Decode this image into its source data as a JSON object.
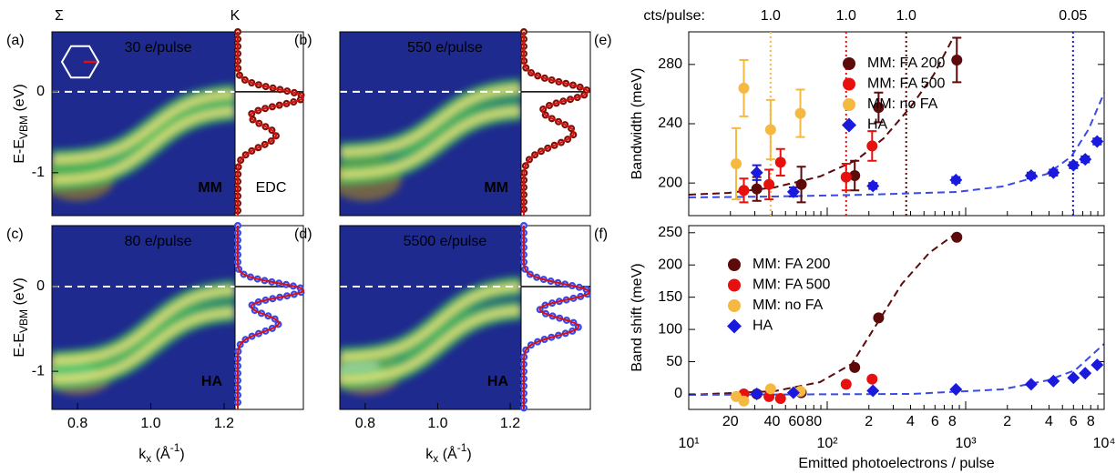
{
  "chart_data": [
    {
      "type": "image",
      "panel_label": "(a)",
      "text": "30 e/pulse",
      "tag": "MM",
      "edc_label": "EDC",
      "top_labels": [
        "Σ",
        "K"
      ],
      "ylabel": [
        "E-E",
        "VBM",
        " (eV)"
      ],
      "ylim": [
        -1.53,
        0.74
      ],
      "yticks": [
        0,
        -1
      ]
    },
    {
      "type": "image",
      "panel_label": "(b)",
      "text": "550 e/pulse",
      "tag": "MM",
      "ylim": [
        -1.53,
        0.74
      ]
    },
    {
      "type": "image",
      "panel_label": "(c)",
      "text": "80 e/pulse",
      "tag": "HA",
      "ylabel": [
        "E-E",
        "VBM",
        " (eV)"
      ],
      "ylim": [
        -1.45,
        0.72
      ],
      "yticks": [
        0,
        -1
      ],
      "xlabel": [
        "k",
        "x",
        " (Å",
        "-1",
        ")"
      ],
      "xlim": [
        0.73,
        1.23
      ],
      "xticks": [
        0.8,
        {
          "value": 1,
          "label": "1.0"
        },
        1.2
      ]
    },
    {
      "type": "image",
      "panel_label": "(d)",
      "text": "5500 e/pulse",
      "tag": "HA",
      "ylim": [
        -1.45,
        0.72
      ],
      "xlabel": [
        "k",
        "x",
        " (Å",
        "-1",
        ")"
      ],
      "xlim": [
        0.73,
        1.23
      ],
      "xticks": [
        0.8,
        {
          "value": 1,
          "label": "1.0"
        },
        1.2
      ]
    },
    {
      "type": "scatter",
      "panel_label": "(e)",
      "ylabel": "Bandwidth (meV)",
      "log_x": true,
      "xlim": [
        10,
        10000
      ],
      "ylim": [
        178,
        302
      ],
      "yticks": [
        200,
        240,
        280
      ],
      "legend": "upper right",
      "vlines_title": "cts/pulse:",
      "vlines": [
        {
          "x": 39,
          "label": "1.0",
          "color": "#f5b942"
        },
        {
          "x": 137,
          "label": "1.0",
          "color": "#e8100f"
        },
        {
          "x": 372,
          "label": "1.0",
          "color": "#5c0a0a"
        },
        {
          "x": 5960,
          "label": "0.05",
          "color": "#1a1adf"
        }
      ],
      "series": [
        {
          "name": "MM: FA 200",
          "color": "#5c0a0a",
          "marker": "circle",
          "x": [
            31,
            65,
            158,
            235,
            863
          ],
          "values": [
            196,
            199,
            205,
            251,
            283
          ],
          "errors": [
            8,
            12,
            10,
            10,
            15
          ]
        },
        {
          "name": "MM: FA 500",
          "color": "#e8100f",
          "marker": "circle",
          "x": [
            25,
            38,
            46,
            137,
            211
          ],
          "values": [
            195,
            199,
            214,
            204,
            225
          ],
          "errors": [
            8,
            10,
            9,
            9,
            10
          ]
        },
        {
          "name": "MM: no FA",
          "color": "#f5b942",
          "marker": "circle",
          "x": [
            22,
            25,
            39,
            64
          ],
          "values": [
            213,
            264,
            236,
            247
          ],
          "errors": [
            24,
            19,
            20,
            16
          ]
        },
        {
          "name": "HA",
          "color": "#1a1adf",
          "marker": "diamond",
          "x": [
            31,
            57,
            214,
            850,
            2970,
            4300,
            6000,
            7300,
            8900
          ],
          "values": [
            207,
            194,
            198,
            202,
            205,
            207,
            212,
            216,
            228
          ],
          "errors": [
            5,
            3,
            2,
            2,
            2,
            2,
            2,
            2,
            2
          ]
        }
      ]
    },
    {
      "type": "scatter",
      "panel_label": "(f)",
      "ylabel": "Band shift (meV)",
      "xlabel": "Emitted photoelectrons / pulse",
      "log_x": true,
      "xlim": [
        10,
        10000
      ],
      "xticks": [
        {
          "value": 10,
          "label": "10¹"
        },
        20,
        40,
        60,
        80,
        {
          "value": 100,
          "label": "10²"
        },
        {
          "value": 200,
          "label": "2"
        },
        {
          "value": 400,
          "label": "4"
        },
        {
          "value": 600,
          "label": "6"
        },
        {
          "value": 800,
          "label": "8"
        },
        {
          "value": 1000,
          "label": "10³"
        },
        {
          "value": 2000,
          "label": "2"
        },
        {
          "value": 4000,
          "label": "4"
        },
        {
          "value": 6000,
          "label": "6"
        },
        {
          "value": 8000,
          "label": "8"
        },
        {
          "value": 10000,
          "label": "10⁴"
        }
      ],
      "xminorticks": [
        30,
        50,
        70,
        90,
        300,
        500,
        700,
        900,
        3000,
        5000,
        7000,
        9000
      ],
      "ylim": [
        -24,
        261
      ],
      "yticks": [
        0,
        50,
        100,
        150,
        200,
        250
      ],
      "legend": "upper left",
      "series": [
        {
          "name": "MM: FA 200",
          "color": "#5c0a0a",
          "marker": "circle",
          "x": [
            31,
            65,
            158,
            235,
            863
          ],
          "values": [
            0,
            2,
            41,
            118,
            243
          ]
        },
        {
          "name": "MM: FA 500",
          "color": "#e8100f",
          "marker": "circle",
          "x": [
            25,
            38,
            46,
            137,
            211
          ],
          "values": [
            0,
            -4,
            -7,
            15,
            23
          ]
        },
        {
          "name": "MM: no FA",
          "color": "#f5b942",
          "marker": "circle",
          "x": [
            22,
            25,
            39,
            64
          ],
          "values": [
            -4,
            -11,
            8,
            4
          ]
        },
        {
          "name": "HA",
          "color": "#1a1adf",
          "marker": "diamond",
          "x": [
            31,
            57,
            214,
            850,
            2970,
            4300,
            6000,
            7300,
            8900
          ],
          "values": [
            0,
            2,
            5,
            7,
            15,
            20,
            25,
            32,
            45
          ]
        }
      ]
    }
  ]
}
